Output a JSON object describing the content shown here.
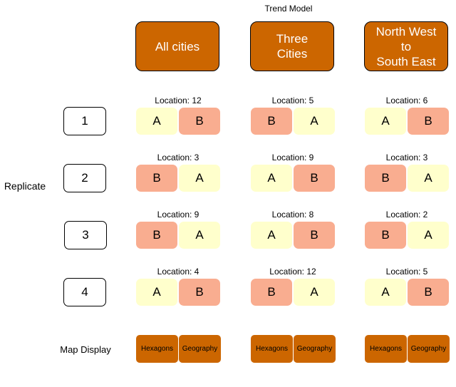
{
  "title": "Trend Model",
  "models": [
    "All cities",
    "Three\nCities",
    "North West\nto\nSouth East"
  ],
  "side_label": "Replicate",
  "map_label": "Map Display",
  "map_options": [
    "Hexagons",
    "Geography"
  ],
  "replicates": [
    {
      "number": "1",
      "cells": [
        {
          "location": "Location: 12",
          "pair": [
            "A",
            "B"
          ]
        },
        {
          "location": "Location: 5",
          "pair": [
            "B",
            "A"
          ]
        },
        {
          "location": "Location: 6",
          "pair": [
            "A",
            "B"
          ]
        }
      ]
    },
    {
      "number": "2",
      "cells": [
        {
          "location": "Location: 3",
          "pair": [
            "B",
            "A"
          ]
        },
        {
          "location": "Location: 9",
          "pair": [
            "A",
            "B"
          ]
        },
        {
          "location": "Location: 3",
          "pair": [
            "B",
            "A"
          ]
        }
      ]
    },
    {
      "number": "3",
      "cells": [
        {
          "location": "Location: 9",
          "pair": [
            "B",
            "A"
          ]
        },
        {
          "location": "Location: 8",
          "pair": [
            "A",
            "B"
          ]
        },
        {
          "location": "Location: 2",
          "pair": [
            "B",
            "A"
          ]
        }
      ]
    },
    {
      "number": "4",
      "cells": [
        {
          "location": "Location: 4",
          "pair": [
            "A",
            "B"
          ]
        },
        {
          "location": "Location: 12",
          "pair": [
            "B",
            "A"
          ]
        },
        {
          "location": "Location: 5",
          "pair": [
            "A",
            "B"
          ]
        }
      ]
    }
  ],
  "colors": {
    "header": "#cc6600",
    "A": "#ffffcc",
    "B": "#f9ad90"
  }
}
